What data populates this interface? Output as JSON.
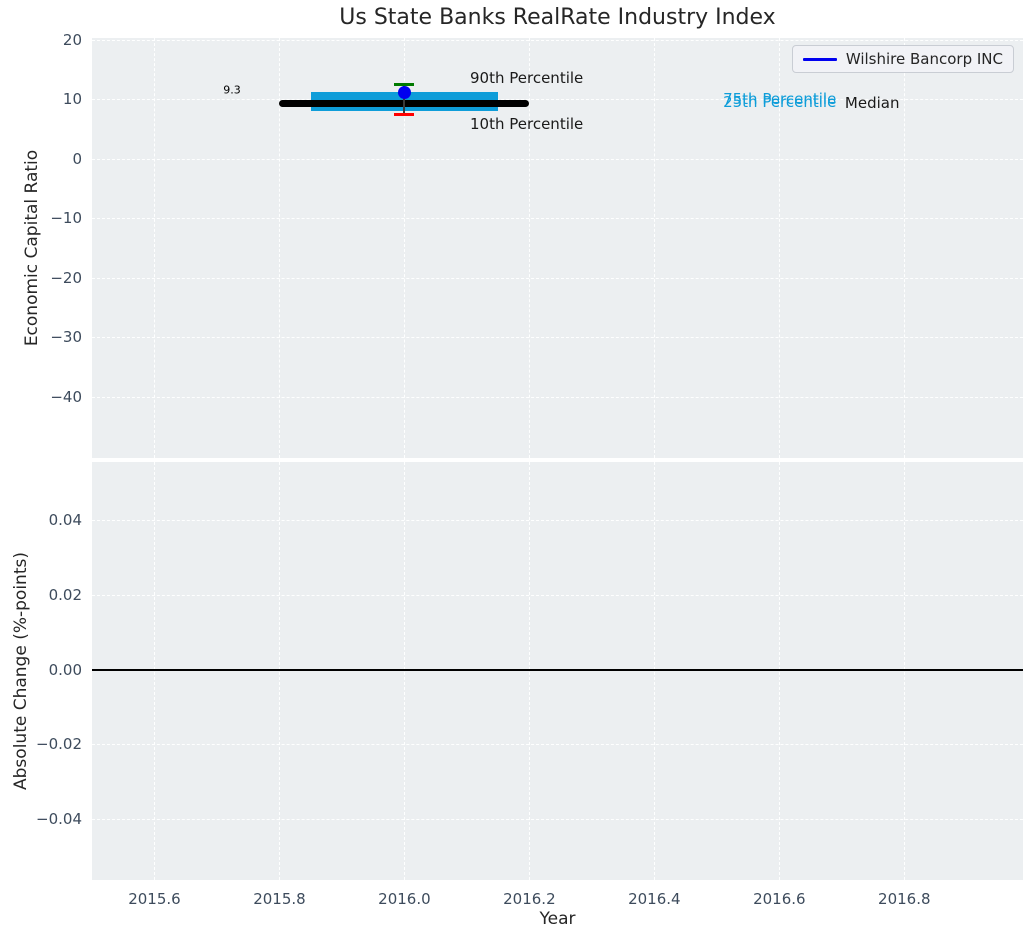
{
  "style": {
    "axes_background": "#ECEFF1",
    "grid_color": "#FFFFFF",
    "tick_color": "#3D4B5C",
    "text_color": "#262626"
  },
  "chart_data": [
    {
      "type": "box_whisker_timeline",
      "title": "Us State Banks RealRate Industry Index",
      "xlabel": "Year",
      "ylabel": "Economic Capital Ratio",
      "xlim": [
        2015.5,
        2016.99
      ],
      "ylim": [
        -50.3,
        20.3
      ],
      "grid": "white dashed, on",
      "xticks": [
        "2015.6",
        "2015.8",
        "2016.0",
        "2016.2",
        "2016.4",
        "2016.6",
        "2016.8"
      ],
      "xtick_values": [
        2015.6,
        2015.8,
        2016.0,
        2016.2,
        2016.4,
        2016.6,
        2016.8
      ],
      "yticks": [
        "20",
        "10",
        "0",
        "−10",
        "−20",
        "−30",
        "−40"
      ],
      "ytick_values": [
        20,
        10,
        0,
        -10,
        -20,
        -30,
        -40
      ],
      "median": {
        "value": 9.3,
        "x_start": 2015.8,
        "x_end": 2016.2,
        "color": "#000000",
        "thickness_px": 7
      },
      "percentile_band": {
        "p25": 8.0,
        "p75": 11.2,
        "x_start": 2015.85,
        "x_end": 2016.15,
        "color": "#0E9DD9"
      },
      "whisker": {
        "x": 2016.0,
        "p10": 7.5,
        "p90": 12.5,
        "p90_cap_color": "#007A00",
        "p10_cap_color": "#FF0000",
        "cap_halfwidth_years": 0.016
      },
      "company_point": {
        "name": "Wilshire Bancorp INC",
        "x": 2016.0,
        "y": 11.1,
        "color": "#0000F0"
      },
      "legend": {
        "label": "Wilshire Bancorp INC",
        "line_color": "#0000F0",
        "position": "upper right"
      },
      "annotations": [
        {
          "text": "9.3",
          "x": 2015.738,
          "y": 11.5,
          "ha": "right",
          "style": "small-black"
        },
        {
          "text": "90th Percentile",
          "x": 2016.105,
          "y": 13.6,
          "ha": "left",
          "style": "black"
        },
        {
          "text": "10th Percentile",
          "x": 2016.105,
          "y": 5.9,
          "ha": "left",
          "style": "black"
        },
        {
          "text": "75th Percentile",
          "x": 2016.51,
          "y": 10.1,
          "ha": "left",
          "style": "cyan"
        },
        {
          "text": "25th Percentile",
          "x": 2016.51,
          "y": 9.6,
          "ha": "left",
          "style": "cyan"
        },
        {
          "text": "Median",
          "x": 2016.705,
          "y": 9.4,
          "ha": "left",
          "style": "black"
        }
      ]
    },
    {
      "type": "line",
      "ylabel": "Absolute Change (%-points)",
      "ylim": [
        -0.0563,
        0.0555
      ],
      "yticks": [
        "0.04",
        "0.02",
        "0.00",
        "−0.02",
        "−0.04"
      ],
      "ytick_values": [
        0.04,
        0.02,
        0.0,
        -0.02,
        -0.04
      ],
      "zero_line": {
        "value": 0.0,
        "color": "#000000"
      },
      "series": []
    }
  ]
}
